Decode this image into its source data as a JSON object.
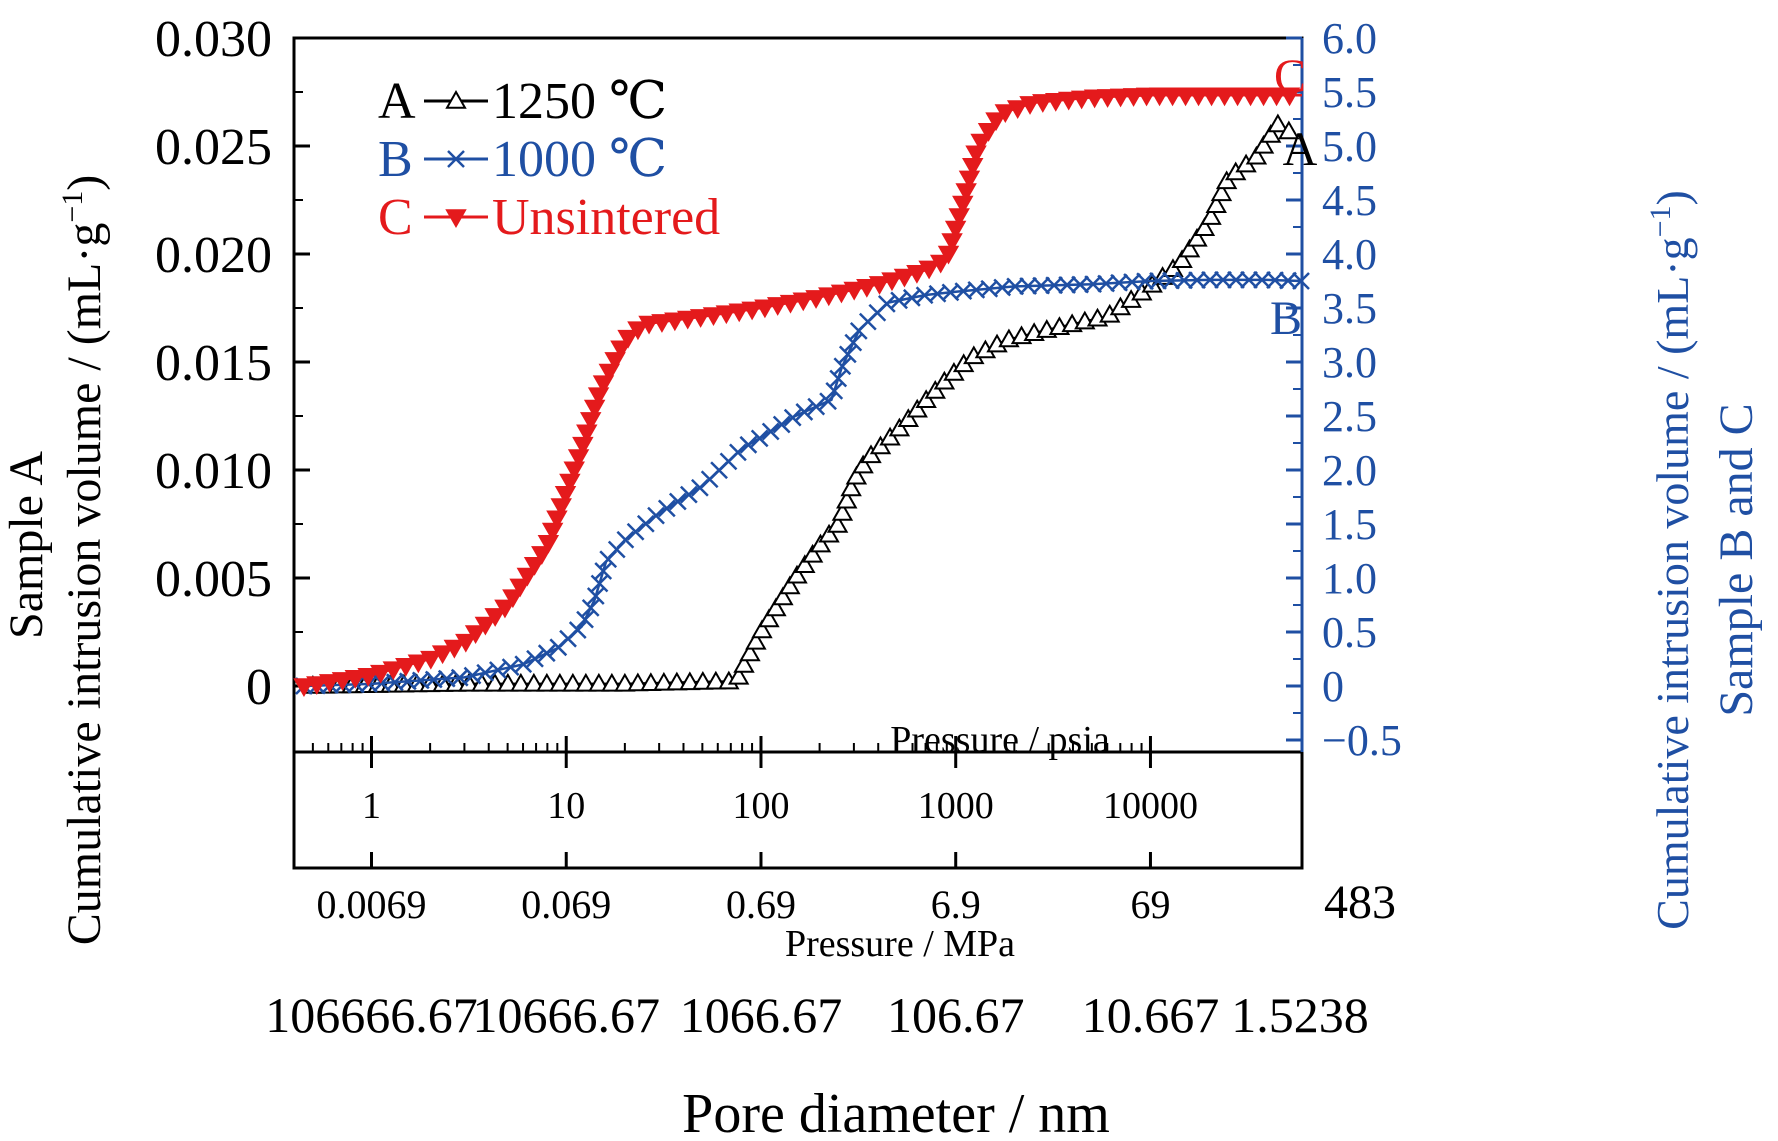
{
  "colors": {
    "A": "#000000",
    "B": "#1f4fa3",
    "C": "#e41a1c",
    "axis": "#000000"
  },
  "chart_data": {
    "type": "line",
    "x_scale": "log",
    "x_unit": "psia",
    "xlim": [
      0.4,
      60000
    ],
    "xlabel": "Pore diameter / nm",
    "ylabel_left_1": "Sample A",
    "ylabel_left_2": "Cumulative intrusion volume / (mL·g",
    "ylabel_left_sup": "−1",
    "ylabel_left_close": ")",
    "ylabel_right_1": "Cumulative intrusion volume / (mL·g",
    "ylabel_right_sup": "−1",
    "ylabel_right_close": ")",
    "ylabel_right_2": "Sample B and C",
    "ylim_left": [
      -0.0027,
      0.03
    ],
    "ylim_right": [
      -0.54,
      6.0
    ],
    "left_ticks": [
      {
        "v": 0.03,
        "label": "0.030"
      },
      {
        "v": 0.025,
        "label": "0.025"
      },
      {
        "v": 0.02,
        "label": "0.020"
      },
      {
        "v": 0.015,
        "label": "0.015"
      },
      {
        "v": 0.01,
        "label": "0.010"
      },
      {
        "v": 0.005,
        "label": "0.005"
      },
      {
        "v": 0,
        "label": "0"
      }
    ],
    "right_ticks": [
      {
        "v": 6.0,
        "label": "6.0"
      },
      {
        "v": 5.5,
        "label": "5.5"
      },
      {
        "v": 5.0,
        "label": "5.0"
      },
      {
        "v": 4.5,
        "label": "4.5"
      },
      {
        "v": 4.0,
        "label": "4.0"
      },
      {
        "v": 3.5,
        "label": "3.5"
      },
      {
        "v": 3.0,
        "label": "3.0"
      },
      {
        "v": 2.5,
        "label": "2.5"
      },
      {
        "v": 2.0,
        "label": "2.0"
      },
      {
        "v": 1.5,
        "label": "1.5"
      },
      {
        "v": 1.0,
        "label": "1.0"
      },
      {
        "v": 0.5,
        "label": "0.5"
      },
      {
        "v": 0,
        "label": "0"
      },
      {
        "v": -0.5,
        "label": "−0.5"
      }
    ],
    "psia_title": "Pressure / psia",
    "psia_ticks": [
      {
        "v": 1,
        "label": "1"
      },
      {
        "v": 10,
        "label": "10"
      },
      {
        "v": 100,
        "label": "100"
      },
      {
        "v": 1000,
        "label": "1000"
      },
      {
        "v": 10000,
        "label": "10000"
      }
    ],
    "mpa_title": "Pressure / MPa",
    "mpa_ticks": [
      {
        "v": 1,
        "label": "0.0069"
      },
      {
        "v": 10,
        "label": "0.069"
      },
      {
        "v": 100,
        "label": "0.69"
      },
      {
        "v": 1000,
        "label": "6.9"
      },
      {
        "v": 10000,
        "label": "69"
      },
      {
        "v": 60000,
        "label": "483"
      }
    ],
    "diameter_ticks": [
      {
        "v": 1,
        "label": "106666.67"
      },
      {
        "v": 10,
        "label": "10666.67"
      },
      {
        "v": 100,
        "label": "1066.67"
      },
      {
        "v": 1000,
        "label": "106.67"
      },
      {
        "v": 10000,
        "label": "10.667"
      },
      {
        "v": 60000,
        "label": "1.5238"
      }
    ],
    "legend": [
      {
        "letter": "A",
        "text": "1250 ℃",
        "marker": "triangle-up",
        "color": "#000000"
      },
      {
        "letter": "B",
        "text": "1000 ℃",
        "marker": "x",
        "color": "#1f4fa3"
      },
      {
        "letter": "C",
        "text": "Unsintered",
        "marker": "triangle-down",
        "color": "#e41a1c"
      }
    ],
    "end_labels": [
      {
        "text": "A",
        "color": "#000000"
      },
      {
        "text": "B",
        "color": "#1f4fa3"
      },
      {
        "text": "C",
        "color": "#e41a1c"
      }
    ],
    "series": [
      {
        "key": "A",
        "axis": "left",
        "marker": "triangle-up",
        "color": "#000000",
        "points": [
          [
            0.5,
            0
          ],
          [
            3,
            0.0001
          ],
          [
            8,
            0.0001
          ],
          [
            20,
            0.0001
          ],
          [
            60,
            0.0002
          ],
          [
            75,
            0.0002
          ],
          [
            80,
            0.0008
          ],
          [
            100,
            0.0025
          ],
          [
            150,
            0.005
          ],
          [
            200,
            0.0065
          ],
          [
            250,
            0.0075
          ],
          [
            300,
            0.0095
          ],
          [
            350,
            0.0105
          ],
          [
            500,
            0.0118
          ],
          [
            700,
            0.0132
          ],
          [
            900,
            0.0142
          ],
          [
            1200,
            0.0152
          ],
          [
            1800,
            0.016
          ],
          [
            3000,
            0.0165
          ],
          [
            6000,
            0.0171
          ],
          [
            9000,
            0.0182
          ],
          [
            14000,
            0.0195
          ],
          [
            20000,
            0.0215
          ],
          [
            25000,
            0.0235
          ],
          [
            35000,
            0.0245
          ],
          [
            45000,
            0.026
          ],
          [
            55000,
            0.0255
          ]
        ]
      },
      {
        "key": "B",
        "axis": "right",
        "marker": "x",
        "color": "#1f4fa3",
        "points": [
          [
            0.45,
            0
          ],
          [
            1,
            0.02
          ],
          [
            3,
            0.08
          ],
          [
            6,
            0.2
          ],
          [
            9,
            0.35
          ],
          [
            12,
            0.55
          ],
          [
            14,
            0.8
          ],
          [
            16,
            1.15
          ],
          [
            20,
            1.35
          ],
          [
            30,
            1.6
          ],
          [
            50,
            1.85
          ],
          [
            80,
            2.2
          ],
          [
            100,
            2.3
          ],
          [
            150,
            2.5
          ],
          [
            230,
            2.65
          ],
          [
            260,
            2.95
          ],
          [
            320,
            3.3
          ],
          [
            450,
            3.55
          ],
          [
            700,
            3.62
          ],
          [
            1000,
            3.65
          ],
          [
            2000,
            3.7
          ],
          [
            5000,
            3.72
          ],
          [
            10000,
            3.75
          ],
          [
            20000,
            3.76
          ],
          [
            40000,
            3.76
          ],
          [
            60000,
            3.75
          ]
        ]
      },
      {
        "key": "C",
        "axis": "right",
        "marker": "triangle-down",
        "color": "#e41a1c",
        "points": [
          [
            0.45,
            0
          ],
          [
            1,
            0.1
          ],
          [
            2,
            0.25
          ],
          [
            3,
            0.4
          ],
          [
            5,
            0.75
          ],
          [
            8,
            1.3
          ],
          [
            10,
            1.8
          ],
          [
            12,
            2.2
          ],
          [
            15,
            2.75
          ],
          [
            20,
            3.2
          ],
          [
            25,
            3.35
          ],
          [
            50,
            3.42
          ],
          [
            100,
            3.5
          ],
          [
            200,
            3.6
          ],
          [
            400,
            3.72
          ],
          [
            700,
            3.85
          ],
          [
            900,
            3.95
          ],
          [
            1100,
            4.5
          ],
          [
            1300,
            5.0
          ],
          [
            1700,
            5.3
          ],
          [
            2500,
            5.4
          ],
          [
            5000,
            5.45
          ],
          [
            10000,
            5.47
          ],
          [
            30000,
            5.47
          ],
          [
            60000,
            5.47
          ]
        ]
      }
    ]
  }
}
